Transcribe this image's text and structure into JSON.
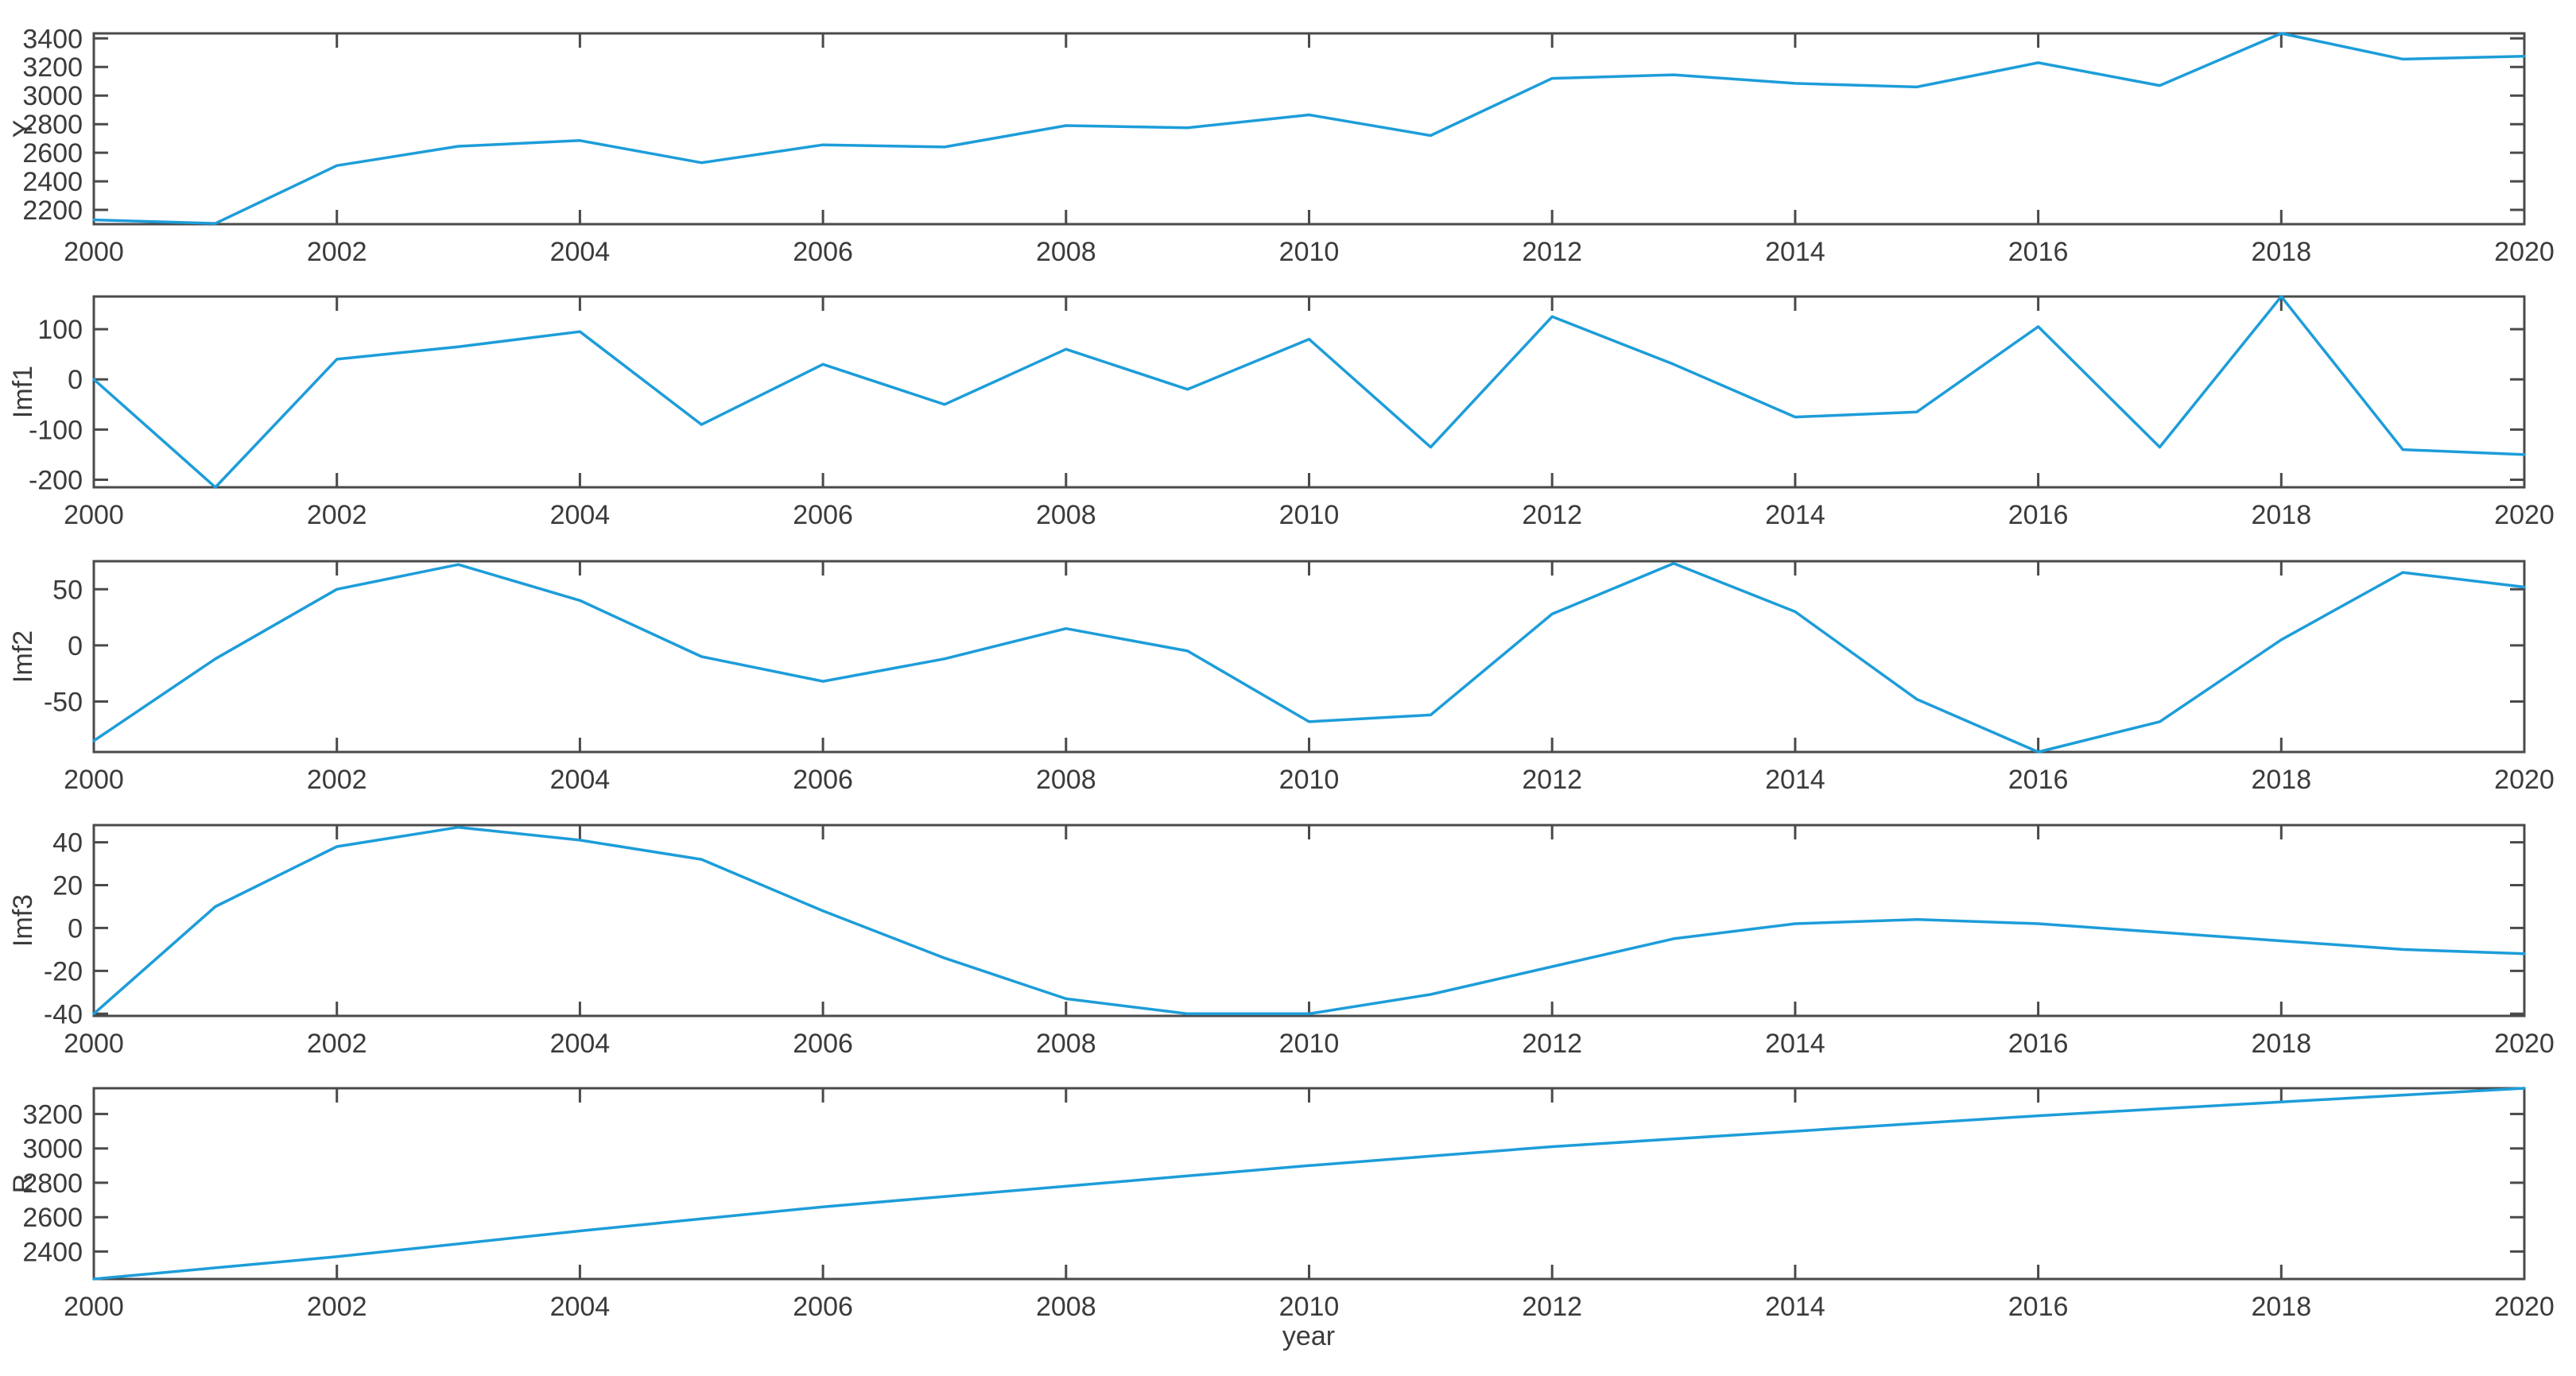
{
  "figure": {
    "xlabel": "year",
    "line_color": "#1d9dd9",
    "axis_color": "#4a4a4a",
    "text_color": "#3b3b3b",
    "background": "#ffffff"
  },
  "chart_data": [
    {
      "type": "line",
      "ylabel": "Y",
      "x": [
        2000,
        2001,
        2002,
        2003,
        2004,
        2005,
        2006,
        2007,
        2008,
        2009,
        2010,
        2011,
        2012,
        2013,
        2014,
        2015,
        2016,
        2017,
        2018,
        2019,
        2020
      ],
      "values": [
        2130,
        2105,
        2510,
        2645,
        2685,
        2530,
        2655,
        2640,
        2790,
        2775,
        2865,
        2720,
        3120,
        3145,
        3085,
        3060,
        3230,
        3070,
        3435,
        3255,
        3275
      ],
      "ylim": [
        2100,
        3435
      ],
      "yticks": [
        2200,
        2400,
        2600,
        2800,
        3000,
        3200,
        3400
      ],
      "xlim": [
        2000,
        2020
      ],
      "xticks": [
        2000,
        2002,
        2004,
        2006,
        2008,
        2010,
        2012,
        2014,
        2016,
        2018,
        2020
      ],
      "grid": false,
      "legend": null
    },
    {
      "type": "line",
      "ylabel": "Imf1",
      "x": [
        2000,
        2001,
        2002,
        2003,
        2004,
        2005,
        2006,
        2007,
        2008,
        2009,
        2010,
        2011,
        2012,
        2013,
        2014,
        2015,
        2016,
        2017,
        2018,
        2019,
        2020
      ],
      "values": [
        0,
        -215,
        40,
        65,
        95,
        -90,
        30,
        -50,
        60,
        -20,
        80,
        -135,
        125,
        30,
        -75,
        -65,
        105,
        -135,
        165,
        -140,
        -150
      ],
      "ylim": [
        -215,
        165
      ],
      "yticks": [
        -200,
        -100,
        0,
        100
      ],
      "xlim": [
        2000,
        2020
      ],
      "xticks": [
        2000,
        2002,
        2004,
        2006,
        2008,
        2010,
        2012,
        2014,
        2016,
        2018,
        2020
      ],
      "grid": false,
      "legend": null
    },
    {
      "type": "line",
      "ylabel": "Imf2",
      "x": [
        2000,
        2001,
        2002,
        2003,
        2004,
        2005,
        2006,
        2007,
        2008,
        2009,
        2010,
        2011,
        2012,
        2013,
        2014,
        2015,
        2016,
        2017,
        2018,
        2019,
        2020
      ],
      "values": [
        -85,
        -12,
        50,
        72,
        40,
        -10,
        -32,
        -12,
        15,
        -5,
        -68,
        -62,
        28,
        73,
        30,
        -48,
        -95,
        -68,
        5,
        65,
        52
      ],
      "ylim": [
        -95,
        75
      ],
      "yticks": [
        -50,
        0,
        50
      ],
      "xlim": [
        2000,
        2020
      ],
      "xticks": [
        2000,
        2002,
        2004,
        2006,
        2008,
        2010,
        2012,
        2014,
        2016,
        2018,
        2020
      ],
      "grid": false,
      "legend": null
    },
    {
      "type": "line",
      "ylabel": "Imf3",
      "x": [
        2000,
        2001,
        2002,
        2003,
        2004,
        2005,
        2006,
        2007,
        2008,
        2009,
        2010,
        2011,
        2012,
        2013,
        2014,
        2015,
        2016,
        2017,
        2018,
        2019,
        2020
      ],
      "values": [
        -40,
        10,
        38,
        47,
        41,
        32,
        8,
        -14,
        -33,
        -40,
        -40,
        -31,
        -18,
        -5,
        2,
        4,
        2,
        -2,
        -6,
        -10,
        -12
      ],
      "ylim": [
        -41,
        48
      ],
      "yticks": [
        -40,
        -20,
        0,
        20,
        40
      ],
      "xlim": [
        2000,
        2020
      ],
      "xticks": [
        2000,
        2002,
        2004,
        2006,
        2008,
        2010,
        2012,
        2014,
        2016,
        2018,
        2020
      ],
      "grid": false,
      "legend": null
    },
    {
      "type": "line",
      "ylabel": "R",
      "x": [
        2000,
        2001,
        2002,
        2003,
        2004,
        2005,
        2006,
        2007,
        2008,
        2009,
        2010,
        2011,
        2012,
        2013,
        2014,
        2015,
        2016,
        2017,
        2018,
        2019,
        2020
      ],
      "values": [
        2240,
        2305,
        2370,
        2445,
        2520,
        2590,
        2660,
        2720,
        2780,
        2840,
        2900,
        2955,
        3010,
        3055,
        3100,
        3145,
        3190,
        3230,
        3270,
        3310,
        3350
      ],
      "ylim": [
        2240,
        3350
      ],
      "yticks": [
        2400,
        2600,
        2800,
        3000,
        3200
      ],
      "xlim": [
        2000,
        2020
      ],
      "xticks": [
        2000,
        2002,
        2004,
        2006,
        2008,
        2010,
        2012,
        2014,
        2016,
        2018,
        2020
      ],
      "grid": false,
      "legend": null
    }
  ]
}
